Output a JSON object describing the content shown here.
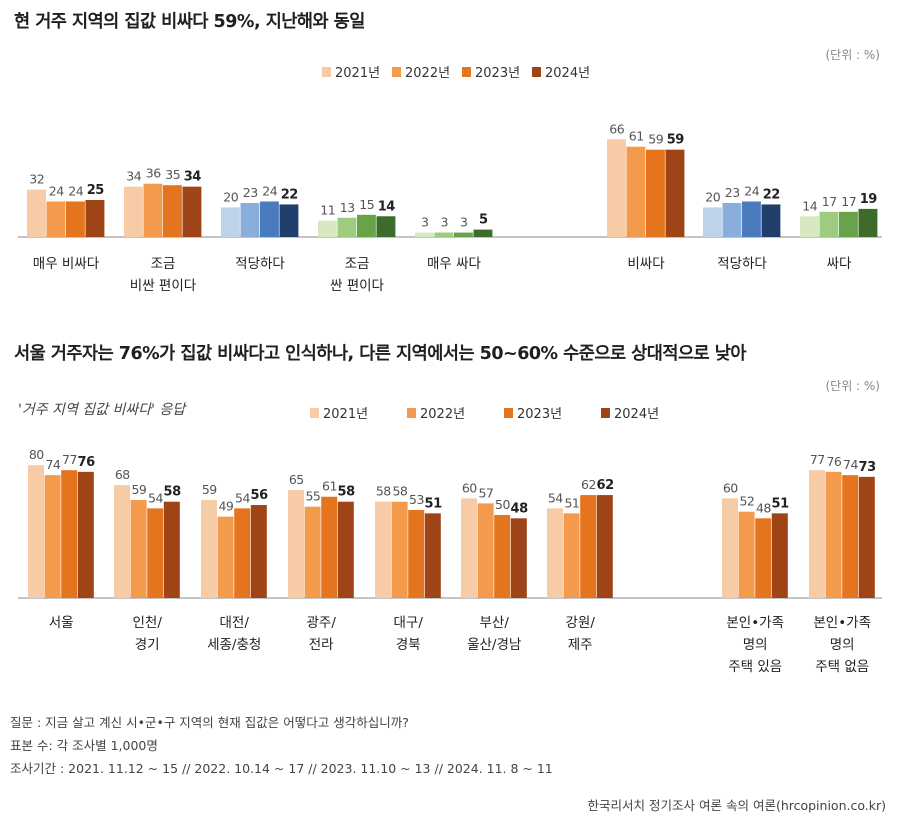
{
  "title1": "현 거주 지역의 집값 비싸다 59%, 지난해와 동일",
  "title2": "서울 거주자는 76%가 집값 비싸다고 인식하나, 다른 지역에서는 50~60% 수준으로 상대적으로 낮아",
  "unit": "(단위 : %)",
  "subtitle": "'거주 지역 집값 비싸다' 응답",
  "footer": {
    "question": "질문 : 지금 살고 계신 시•군•구 지역의 현재 집값은 어떻다고 생각하십니까?",
    "sample": "표본 수: 각 조사별 1,000명",
    "period": "조사기간 : 2021. 11.12 ~ 15 // 2022. 10.14 ~ 17 // 2023. 11.10 ~ 13 // 2024. 11. 8 ~ 11",
    "source": "한국리서치 정기조사 여론 속의 여론(hrcopinion.co.kr)"
  },
  "colors": {
    "orange": [
      "#f7cba5",
      "#f39a4c",
      "#e5741f",
      "#9e4416"
    ],
    "blue": [
      "#bed2ea",
      "#89aedb",
      "#4b7bbf",
      "#20406b"
    ],
    "green": [
      "#d5e8c0",
      "#9fcb80",
      "#67a348",
      "#3c6b2b"
    ]
  },
  "chart_data": [
    {
      "type": "bar",
      "legend": [
        "2021년",
        "2022년",
        "2023년",
        "2024년"
      ],
      "categories": [
        {
          "label": [
            "매우 비싸다"
          ],
          "values": [
            32,
            24,
            24,
            25
          ],
          "palette": "orange"
        },
        {
          "label": [
            "조금",
            "비싼 편이다"
          ],
          "values": [
            34,
            36,
            35,
            34
          ],
          "palette": "orange"
        },
        {
          "label": [
            "적당하다"
          ],
          "values": [
            20,
            23,
            24,
            22
          ],
          "palette": "blue"
        },
        {
          "label": [
            "조금",
            "싼 편이다"
          ],
          "values": [
            11,
            13,
            15,
            14
          ],
          "palette": "green"
        },
        {
          "label": [
            "매우 싸다"
          ],
          "values": [
            3,
            3,
            3,
            5
          ],
          "palette": "green"
        },
        {
          "label": [
            "비싸다"
          ],
          "values": [
            66,
            61,
            59,
            59
          ],
          "palette": "orange"
        },
        {
          "label": [
            "적당하다"
          ],
          "values": [
            20,
            23,
            24,
            22
          ],
          "palette": "blue"
        },
        {
          "label": [
            "싸다"
          ],
          "values": [
            14,
            17,
            17,
            19
          ],
          "palette": "green"
        }
      ]
    },
    {
      "type": "bar",
      "legend": [
        "2021년",
        "2022년",
        "2023년",
        "2024년"
      ],
      "categories": [
        {
          "label": [
            "서울"
          ],
          "values": [
            80,
            74,
            77,
            76
          ],
          "palette": "orange"
        },
        {
          "label": [
            "인천/",
            "경기"
          ],
          "values": [
            68,
            59,
            54,
            58
          ],
          "palette": "orange"
        },
        {
          "label": [
            "대전/",
            "세종/충청"
          ],
          "values": [
            59,
            49,
            54,
            56
          ],
          "palette": "orange"
        },
        {
          "label": [
            "광주/",
            "전라"
          ],
          "values": [
            65,
            55,
            61,
            58
          ],
          "palette": "orange"
        },
        {
          "label": [
            "대구/",
            "경북"
          ],
          "values": [
            58,
            58,
            53,
            51
          ],
          "palette": "orange"
        },
        {
          "label": [
            "부산/",
            "울산/경남"
          ],
          "values": [
            60,
            57,
            50,
            48
          ],
          "palette": "orange"
        },
        {
          "label": [
            "강원/",
            "제주"
          ],
          "values": [
            54,
            51,
            62,
            62
          ],
          "palette": "orange"
        },
        {
          "label": [
            "본인•가족",
            "명의",
            "주택 있음"
          ],
          "values": [
            60,
            52,
            48,
            51
          ],
          "palette": "orange"
        },
        {
          "label": [
            "본인•가족",
            "명의",
            "주택 없음"
          ],
          "values": [
            77,
            76,
            74,
            73
          ],
          "palette": "orange"
        }
      ]
    }
  ]
}
